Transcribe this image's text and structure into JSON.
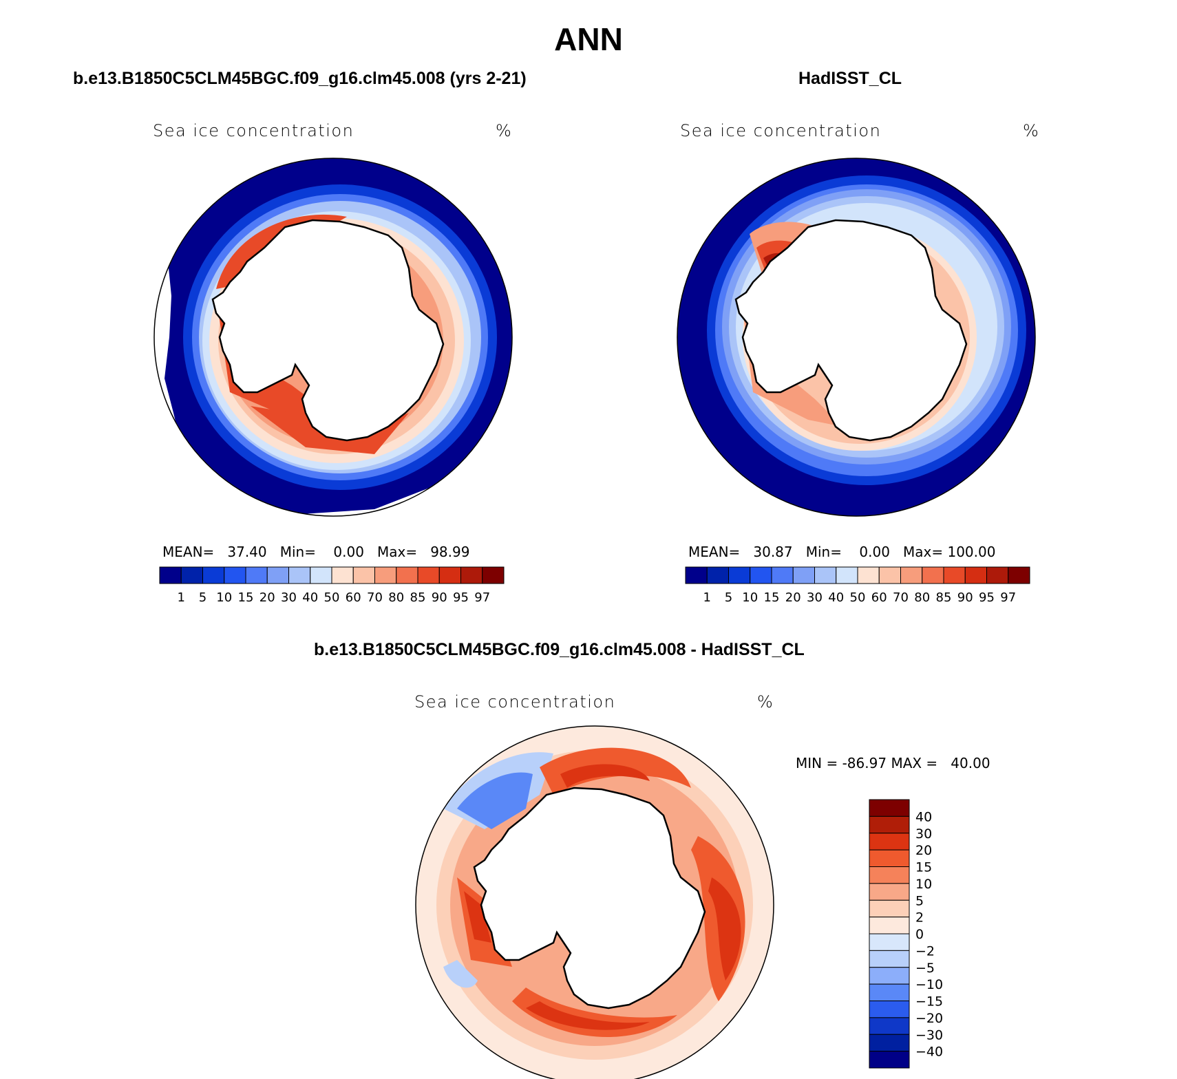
{
  "page": {
    "title": "ANN"
  },
  "panels": [
    {
      "id": "model",
      "title": "b.e13.B1850C5CLM45BGC.f09_g16.clm45.008 (yrs 2-21)",
      "variable": "Sea ice concentration",
      "units": "%",
      "stats": {
        "mean_label": "MEAN=",
        "mean": "37.40",
        "min_label": "Min=",
        "min": "0.00",
        "max_label": "Max=",
        "max": "98.99"
      }
    },
    {
      "id": "obs",
      "title": "HadISST_CL",
      "variable": "Sea ice concentration",
      "units": "%",
      "stats": {
        "mean_label": "MEAN=",
        "mean": "30.87",
        "min_label": "Min=",
        "min": "0.00",
        "max_label": "Max=",
        "max": "100.00"
      }
    },
    {
      "id": "diff",
      "title": "b.e13.B1850C5CLM45BGC.f09_g16.clm45.008 - HadISST_CL",
      "variable": "Sea ice concentration",
      "units": "%",
      "stats": {
        "min_label": "MIN =",
        "min": "-86.97",
        "max_label": "MAX =",
        "max": "40.00"
      }
    }
  ],
  "colorbars": {
    "concentration": {
      "levels": [
        "1",
        "5",
        "10",
        "15",
        "20",
        "30",
        "40",
        "50",
        "60",
        "70",
        "80",
        "85",
        "90",
        "95",
        "97"
      ],
      "colors": [
        "#00008b",
        "#0022aa",
        "#0a3bd6",
        "#2255f0",
        "#4f7af7",
        "#7fa0f6",
        "#aac4f8",
        "#d2e4fb",
        "#fde2d2",
        "#fbc3a8",
        "#f79d7c",
        "#f2714e",
        "#e84a28",
        "#d52e12",
        "#ad1a0a",
        "#7d0000"
      ]
    },
    "difference": {
      "levels": [
        "40",
        "30",
        "20",
        "15",
        "10",
        "5",
        "2",
        "0",
        "−2",
        "−5",
        "−10",
        "−15",
        "−20",
        "−30",
        "−40"
      ],
      "colors": [
        "#7d0000",
        "#b01e08",
        "#dc3412",
        "#ef5a2e",
        "#f5825a",
        "#f8a888",
        "#fcd0b8",
        "#fde9dd",
        "#d8e7fb",
        "#b8d0fa",
        "#8caefa",
        "#5a88f7",
        "#2b5cee",
        "#0f38c8",
        "#0020a0",
        "#000087"
      ]
    }
  }
}
